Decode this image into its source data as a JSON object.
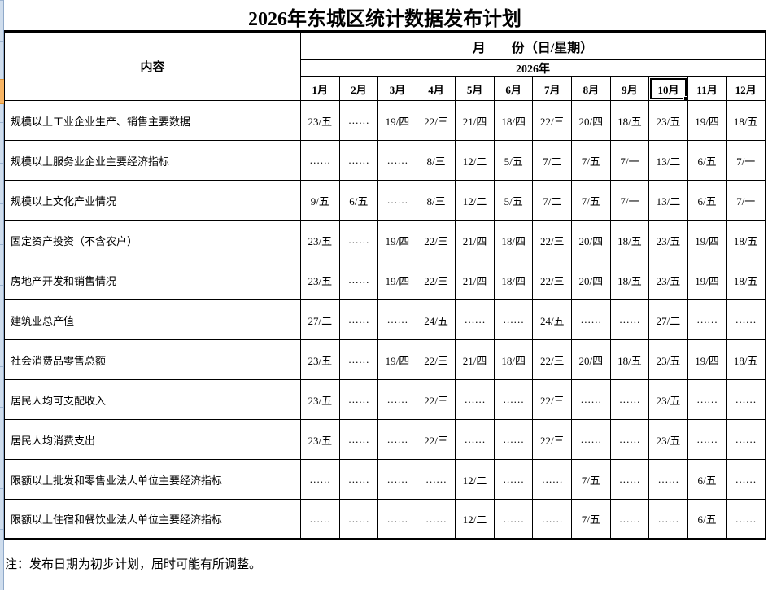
{
  "title": "2026年东城区统计数据发布计划",
  "table": {
    "content_header": "内容",
    "month_band_header": "月　　份（日/星期）",
    "year_header": "2026年",
    "months": [
      "1月",
      "2月",
      "3月",
      "4月",
      "5月",
      "6月",
      "7月",
      "8月",
      "9月",
      "10月",
      "11月",
      "12月"
    ],
    "selected_month": "10月",
    "rows": [
      {
        "label": "规模以上工业企业生产、销售主要数据",
        "values": [
          "23/五",
          "……",
          "19/四",
          "22/三",
          "21/四",
          "18/四",
          "22/三",
          "20/四",
          "18/五",
          "23/五",
          "19/四",
          "18/五"
        ]
      },
      {
        "label": "规模以上服务业企业主要经济指标",
        "values": [
          "……",
          "……",
          "……",
          "8/三",
          "12/二",
          "5/五",
          "7/二",
          "7/五",
          "7/一",
          "13/二",
          "6/五",
          "7/一"
        ]
      },
      {
        "label": "规模以上文化产业情况",
        "values": [
          "9/五",
          "6/五",
          "……",
          "8/三",
          "12/二",
          "5/五",
          "7/二",
          "7/五",
          "7/一",
          "13/二",
          "6/五",
          "7/一"
        ]
      },
      {
        "label": "固定资产投资（不含农户）",
        "values": [
          "23/五",
          "……",
          "19/四",
          "22/三",
          "21/四",
          "18/四",
          "22/三",
          "20/四",
          "18/五",
          "23/五",
          "19/四",
          "18/五"
        ]
      },
      {
        "label": "房地产开发和销售情况",
        "values": [
          "23/五",
          "……",
          "19/四",
          "22/三",
          "21/四",
          "18/四",
          "22/三",
          "20/四",
          "18/五",
          "23/五",
          "19/四",
          "18/五"
        ]
      },
      {
        "label": "建筑业总产值",
        "values": [
          "27/二",
          "……",
          "……",
          "24/五",
          "……",
          "……",
          "24/五",
          "……",
          "……",
          "27/二",
          "……",
          "……"
        ]
      },
      {
        "label": "社会消费品零售总额",
        "values": [
          "23/五",
          "……",
          "19/四",
          "22/三",
          "21/四",
          "18/四",
          "22/三",
          "20/四",
          "18/五",
          "23/五",
          "19/四",
          "18/五"
        ]
      },
      {
        "label": "居民人均可支配收入",
        "values": [
          "23/五",
          "……",
          "……",
          "22/三",
          "……",
          "……",
          "22/三",
          "……",
          "……",
          "23/五",
          "……",
          "……"
        ]
      },
      {
        "label": "居民人均消费支出",
        "values": [
          "23/五",
          "……",
          "……",
          "22/三",
          "……",
          "……",
          "22/三",
          "……",
          "……",
          "23/五",
          "……",
          "……"
        ]
      },
      {
        "label": "限额以上批发和零售业法人单位主要经济指标",
        "values": [
          "……",
          "……",
          "……",
          "……",
          "12/二",
          "……",
          "……",
          "7/五",
          "……",
          "……",
          "6/五",
          "……"
        ]
      },
      {
        "label": "限额以上住宿和餐饮业法人单位主要经济指标",
        "values": [
          "……",
          "……",
          "……",
          "……",
          "12/二",
          "……",
          "……",
          "7/五",
          "……",
          "……",
          "6/五",
          "……"
        ]
      }
    ]
  },
  "footnote": "注：发布日期为初步计划，届时可能有所调整。",
  "colors": {
    "grid": "#000000",
    "row_header_strip": "#cfdded",
    "selected_row_indicator": "#f8b564",
    "selection_border": "#000000"
  }
}
